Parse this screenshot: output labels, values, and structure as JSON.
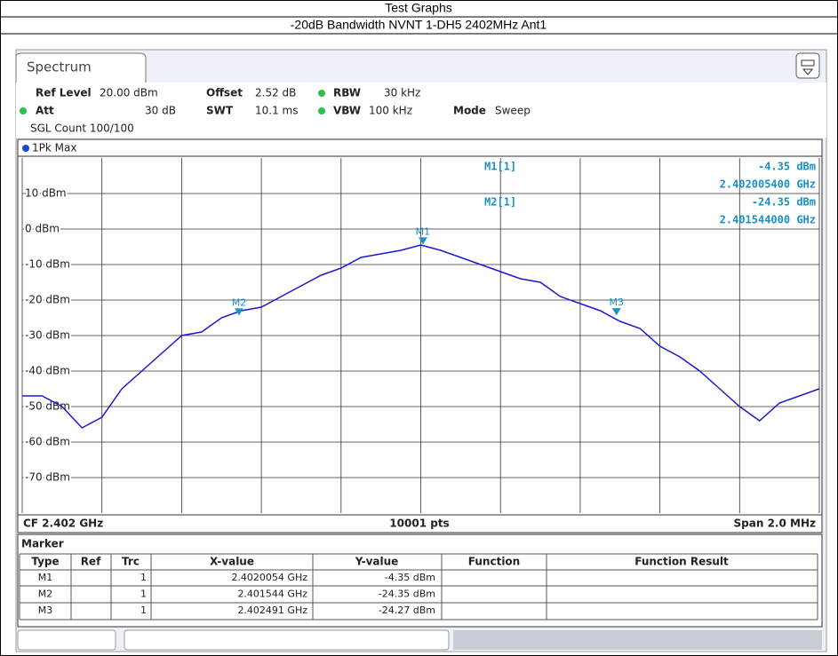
{
  "header": {
    "title": "Test Graphs",
    "subtitle": "-20dB Bandwidth NVNT 1-DH5 2402MHz Ant1"
  },
  "tab": "Spectrum",
  "settings": [
    "Ref Level",
    "20.00 dBm",
    "Offset",
    "2.52 dB",
    "RBW",
    "30 kHz",
    "Att",
    "30 dB",
    "SWT",
    "10.1 ms",
    "VBW",
    "100 kHz",
    "Mode",
    "Sweep",
    "SGL Count 100/100"
  ],
  "readout": [
    "M1[1]",
    "-4.35 dBm",
    "2.402005400 GHz",
    "M2[1]",
    "-24.35 dBm",
    "2.401544000 GHz"
  ],
  "footer": {
    "cf": "CF 2.402 GHz",
    "points": "10001 pts",
    "span": "Span 2.0 MHz"
  },
  "marker_table": {
    "title": "Marker",
    "columns": [
      "Type",
      "Ref",
      "Trc",
      "X-value",
      "Y-value",
      "Function",
      "Function Result"
    ],
    "rows": [
      {
        "type": "M1",
        "trc": "1",
        "x": "2.4020054 GHz",
        "y": "-4.35 dBm"
      },
      {
        "type": "M2",
        "trc": "1",
        "x": "2.401544 GHz",
        "y": "-24.35 dBm"
      },
      {
        "type": "M3",
        "trc": "1",
        "x": "2.402491 GHz",
        "y": "-24.27 dBm"
      }
    ]
  },
  "chart_data": {
    "type": "line",
    "xlim": [
      2.401,
      2.403
    ],
    "ylim": [
      -80,
      20
    ],
    "xticks": [
      2.401,
      2.4012,
      2.4014,
      2.4016,
      2.4018,
      2.402,
      2.4022,
      2.4024,
      2.4026,
      2.4028,
      2.403
    ],
    "yticks": [
      {
        "value": 10,
        "label": "10 dBm"
      },
      {
        "value": 0,
        "label": "0 dBm"
      },
      {
        "value": -10,
        "label": "-10 dBm"
      },
      {
        "value": -20,
        "label": "-20 dBm"
      },
      {
        "value": -30,
        "label": "-30 dBm"
      },
      {
        "value": -40,
        "label": "-40 dBm"
      },
      {
        "value": -50,
        "label": "-50 dBm"
      },
      {
        "value": -60,
        "label": "-60 dBm"
      },
      {
        "value": -70,
        "label": "-70 dBm"
      }
    ],
    "grid": true,
    "x": [
      2.401,
      2.40105,
      2.4011,
      2.40115,
      2.4012,
      2.40125,
      2.4013,
      2.40135,
      2.4014,
      2.40145,
      2.4015,
      2.40155,
      2.4016,
      2.40165,
      2.4017,
      2.40175,
      2.4018,
      2.40185,
      2.4019,
      2.40195,
      2.402,
      2.40205,
      2.4021,
      2.40215,
      2.4022,
      2.40225,
      2.4023,
      2.40235,
      2.4024,
      2.40245,
      2.4025,
      2.40255,
      2.4026,
      2.40265,
      2.4027,
      2.40275,
      2.4028,
      2.40285,
      2.4029,
      2.40295,
      2.403
    ],
    "series": [
      {
        "name": "1Pk Max",
        "color": "#1a1acc",
        "values": [
          -47,
          -47,
          -50,
          -56,
          -53,
          -45,
          -40,
          -35,
          -30,
          -29,
          -25,
          -23,
          -22,
          -19,
          -16,
          -13,
          -11,
          -8,
          -7,
          -6,
          -4.5,
          -6,
          -8,
          -10,
          -12,
          -14,
          -15,
          -19,
          -21,
          -23,
          -26,
          -28,
          -33,
          -36,
          -40,
          -45,
          -50,
          -54,
          -49,
          -47,
          -45
        ]
      }
    ],
    "markers": [
      {
        "name": "M1",
        "x": 2.4020054,
        "y": -4.35
      },
      {
        "name": "M2",
        "x": 2.401544,
        "y": -24.35
      },
      {
        "name": "M3",
        "x": 2.402491,
        "y": -24.27
      }
    ]
  }
}
